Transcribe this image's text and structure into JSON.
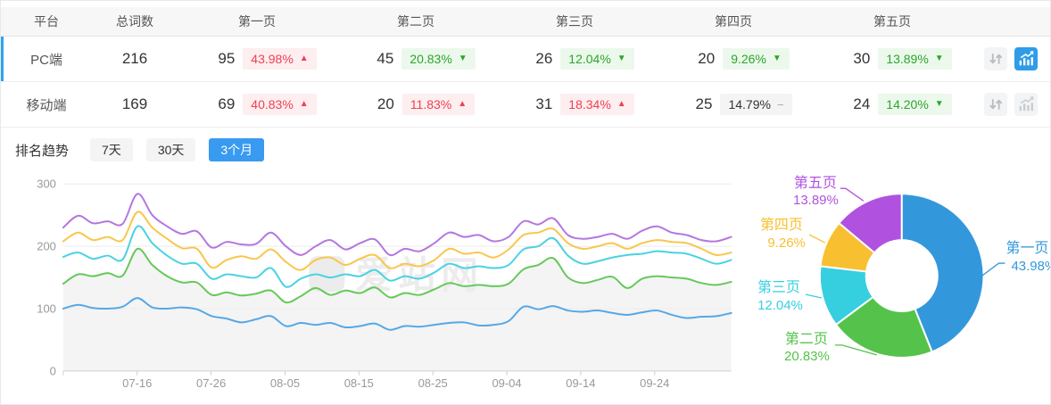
{
  "accent_color": "#2fa3f0",
  "active_blue": "#2f9ce8",
  "table": {
    "headers": {
      "platform": "平台",
      "total": "总词数",
      "pages": [
        "第一页",
        "第二页",
        "第三页",
        "第四页",
        "第五页"
      ]
    },
    "trend_symbols": {
      "up": "▲",
      "down": "▼",
      "flat": "−"
    },
    "rows": [
      {
        "platform": "PC端",
        "total": "216",
        "selected": true,
        "chart_active": true,
        "pages": [
          {
            "count": "95",
            "pct": "43.98%",
            "trend": "up"
          },
          {
            "count": "45",
            "pct": "20.83%",
            "trend": "down"
          },
          {
            "count": "26",
            "pct": "12.04%",
            "trend": "down"
          },
          {
            "count": "20",
            "pct": "9.26%",
            "trend": "down"
          },
          {
            "count": "30",
            "pct": "13.89%",
            "trend": "down"
          }
        ]
      },
      {
        "platform": "移动端",
        "total": "169",
        "selected": false,
        "chart_active": false,
        "pages": [
          {
            "count": "69",
            "pct": "40.83%",
            "trend": "up"
          },
          {
            "count": "20",
            "pct": "11.83%",
            "trend": "up"
          },
          {
            "count": "31",
            "pct": "18.34%",
            "trend": "up"
          },
          {
            "count": "25",
            "pct": "14.79%",
            "trend": "flat"
          },
          {
            "count": "24",
            "pct": "14.20%",
            "trend": "down"
          }
        ]
      }
    ]
  },
  "trend_section": {
    "label": "排名趋势",
    "tabs": [
      {
        "label": "7天",
        "active": false
      },
      {
        "label": "30天",
        "active": false
      },
      {
        "label": "3个月",
        "active": true
      }
    ]
  },
  "chart_data": [
    {
      "type": "line",
      "title": "排名趋势（3个月）",
      "x_labels": [
        "07-16",
        "07-26",
        "08-05",
        "08-15",
        "08-25",
        "09-04",
        "09-14",
        "09-24"
      ],
      "ylim": [
        0,
        300
      ],
      "yticks": [
        0,
        100,
        200,
        300
      ],
      "grid": true,
      "watermark": "爱站网",
      "series": [
        {
          "name": "第一页",
          "color": "#55a8e6",
          "values": [
            100,
            106,
            101,
            100,
            103,
            117,
            102,
            100,
            102,
            99,
            88,
            84,
            78,
            83,
            88,
            72,
            77,
            74,
            77,
            70,
            72,
            76,
            66,
            72,
            71,
            74,
            77,
            78,
            73,
            74,
            80,
            103,
            99,
            104,
            97,
            95,
            97,
            93,
            90,
            94,
            97,
            90,
            85,
            87,
            88,
            93
          ]
        },
        {
          "name": "第二页",
          "color": "#66c85a",
          "area_fill": "#f4f4f4",
          "values": [
            140,
            155,
            152,
            157,
            153,
            196,
            170,
            152,
            142,
            142,
            122,
            126,
            121,
            124,
            129,
            110,
            120,
            133,
            122,
            129,
            125,
            134,
            118,
            125,
            122,
            131,
            141,
            136,
            138,
            136,
            140,
            163,
            170,
            181,
            150,
            141,
            146,
            151,
            133,
            148,
            152,
            150,
            148,
            141,
            138,
            143
          ]
        },
        {
          "name": "第三页",
          "color": "#4ad2e2",
          "values": [
            183,
            190,
            180,
            185,
            179,
            232,
            205,
            185,
            172,
            172,
            148,
            155,
            152,
            150,
            165,
            135,
            148,
            155,
            150,
            155,
            152,
            162,
            145,
            152,
            148,
            158,
            172,
            165,
            168,
            165,
            170,
            195,
            200,
            213,
            185,
            172,
            176,
            182,
            186,
            188,
            192,
            190,
            188,
            180,
            172,
            178
          ]
        },
        {
          "name": "第四页",
          "color": "#f9c64b",
          "values": [
            208,
            222,
            210,
            215,
            210,
            255,
            230,
            212,
            197,
            196,
            166,
            178,
            184,
            180,
            195,
            175,
            162,
            178,
            182,
            170,
            180,
            186,
            165,
            172,
            168,
            178,
            196,
            188,
            190,
            182,
            195,
            218,
            222,
            228,
            205,
            196,
            200,
            205,
            196,
            205,
            210,
            207,
            205,
            196,
            186,
            190
          ]
        },
        {
          "name": "第五页",
          "color": "#b377e0",
          "values": [
            230,
            249,
            237,
            240,
            236,
            284,
            250,
            232,
            220,
            224,
            198,
            207,
            203,
            204,
            222,
            200,
            186,
            200,
            210,
            195,
            205,
            211,
            186,
            196,
            192,
            205,
            222,
            215,
            218,
            208,
            215,
            240,
            235,
            245,
            218,
            212,
            215,
            220,
            212,
            225,
            232,
            222,
            218,
            210,
            208,
            215
          ]
        }
      ]
    },
    {
      "type": "pie",
      "donut": true,
      "start_angle": "top-clockwise",
      "slices": [
        {
          "label": "第一页",
          "value": 43.98,
          "display": "43.98%",
          "color": "#3398db"
        },
        {
          "label": "第二页",
          "value": 20.83,
          "display": "20.83%",
          "color": "#55c34b"
        },
        {
          "label": "第三页",
          "value": 12.04,
          "display": "12.04%",
          "color": "#36cfe0"
        },
        {
          "label": "第四页",
          "value": 9.26,
          "display": "9.26%",
          "color": "#f8c031"
        },
        {
          "label": "第五页",
          "value": 13.89,
          "display": "13.89%",
          "color": "#b052df"
        }
      ]
    }
  ]
}
